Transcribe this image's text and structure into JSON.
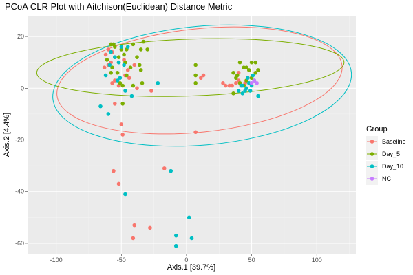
{
  "chart_data": {
    "type": "scatter",
    "title": "PCoA CLR Plot with Aitchison(Euclidean) Distance Metric",
    "xlabel": "Axis.1   [39.7%]",
    "ylabel": "Axis.2   [4.4%]",
    "xlim": [
      -122,
      130
    ],
    "ylim": [
      -64,
      28
    ],
    "x_ticks": [
      -100,
      -50,
      0,
      50,
      100
    ],
    "y_ticks": [
      20,
      0,
      -20,
      -40,
      -60
    ],
    "grid": true,
    "legend": {
      "title": "Group",
      "placement": "right"
    },
    "series": [
      {
        "name": "Baseline",
        "color": "#F8766D",
        "points": [
          [
            -60,
            15
          ],
          [
            -62,
            13
          ],
          [
            -57,
            14
          ],
          [
            -55,
            12
          ],
          [
            -58,
            10
          ],
          [
            -63,
            8
          ],
          [
            -52,
            10
          ],
          [
            -48,
            11
          ],
          [
            -45,
            7
          ],
          [
            -40,
            9
          ],
          [
            -57,
            2
          ],
          [
            -52,
            1
          ],
          [
            -47,
            5
          ],
          [
            -55,
            -6
          ],
          [
            -50,
            -14
          ],
          [
            -38,
            0
          ],
          [
            -27,
            -1
          ],
          [
            -55,
            3
          ],
          [
            -60,
            9
          ],
          [
            -44,
            4
          ],
          [
            -56,
            -32
          ],
          [
            -52,
            -37
          ],
          [
            -17,
            -31
          ],
          [
            7,
            -17
          ],
          [
            -40,
            -53
          ],
          [
            -28,
            -54
          ],
          [
            -41,
            -58
          ],
          [
            -49,
            -18
          ],
          [
            38,
            2
          ],
          [
            42,
            1
          ],
          [
            35,
            1
          ],
          [
            30,
            1
          ],
          [
            45,
            2
          ],
          [
            47,
            4
          ],
          [
            40,
            6
          ],
          [
            11,
            4
          ],
          [
            13,
            5
          ],
          [
            40,
            3
          ],
          [
            33,
            1
          ],
          [
            28,
            2
          ]
        ]
      },
      {
        "name": "Day_5",
        "color": "#7CAE00",
        "points": [
          [
            -58,
            17
          ],
          [
            -55,
            16
          ],
          [
            -50,
            15
          ],
          [
            -46,
            15
          ],
          [
            -48,
            13
          ],
          [
            -52,
            12
          ],
          [
            -47,
            10
          ],
          [
            -43,
            8
          ],
          [
            -38,
            12
          ],
          [
            -35,
            15
          ],
          [
            -33,
            18
          ],
          [
            -30,
            15
          ],
          [
            -41,
            17
          ],
          [
            -57,
            8
          ],
          [
            -53,
            6
          ],
          [
            -36,
            9
          ],
          [
            -35,
            7
          ],
          [
            -56,
            17
          ],
          [
            -61,
            11
          ],
          [
            -46,
            5
          ],
          [
            -51,
            2
          ],
          [
            -49,
            1
          ],
          [
            -41,
            1
          ],
          [
            -49,
            -6
          ],
          [
            -34,
            2
          ],
          [
            -58,
            6
          ],
          [
            7,
            9
          ],
          [
            7,
            5
          ],
          [
            7,
            2
          ],
          [
            41,
            10
          ],
          [
            44,
            8
          ],
          [
            46,
            8
          ],
          [
            50,
            10
          ],
          [
            53,
            10
          ],
          [
            55,
            7
          ],
          [
            48,
            7
          ],
          [
            36,
            6
          ],
          [
            38,
            4
          ],
          [
            46,
            3
          ],
          [
            50,
            4
          ],
          [
            41,
            2
          ],
          [
            44,
            1
          ],
          [
            36,
            -2
          ],
          [
            53,
            6
          ],
          [
            39,
            5
          ]
        ]
      },
      {
        "name": "Day_10",
        "color": "#00BFC4",
        "points": [
          [
            -50,
            16
          ],
          [
            -45,
            16
          ],
          [
            -58,
            14
          ],
          [
            -55,
            12
          ],
          [
            -59,
            9
          ],
          [
            -52,
            10
          ],
          [
            -48,
            9
          ],
          [
            -62,
            5
          ],
          [
            -66,
            -7
          ],
          [
            -60,
            -10
          ],
          [
            -51,
            4
          ],
          [
            -53,
            3
          ],
          [
            -47,
            -1
          ],
          [
            -42,
            -3
          ],
          [
            -22,
            2
          ],
          [
            -12,
            -32
          ],
          [
            -47,
            -41
          ],
          [
            -8,
            -57
          ],
          [
            -8,
            -61
          ],
          [
            2,
            -50
          ],
          [
            4,
            -58
          ],
          [
            43,
            1
          ],
          [
            46,
            0
          ],
          [
            48,
            2
          ],
          [
            50,
            1
          ],
          [
            52,
            3
          ],
          [
            43,
            -2
          ],
          [
            45,
            -1
          ],
          [
            49,
            -1
          ],
          [
            55,
            -3
          ],
          [
            40,
            -1
          ],
          [
            47,
            4
          ],
          [
            42,
            1
          ],
          [
            51,
            5
          ]
        ]
      },
      {
        "name": "NC",
        "color": "#C77CFF",
        "points": [
          [
            52,
            3
          ],
          [
            54,
            2
          ],
          [
            50,
            2
          ]
        ]
      }
    ],
    "ellipses": [
      {
        "group": "Baseline",
        "color": "#F8766D",
        "cx": 10,
        "cy": 3,
        "rx": 110,
        "ry": 20,
        "angle_deg": -6
      },
      {
        "group": "Day_5",
        "color": "#7CAE00",
        "cx": 3,
        "cy": 8,
        "rx": 118,
        "ry": 11,
        "angle_deg": -2
      },
      {
        "group": "Day_10",
        "color": "#00BFC4",
        "cx": 12,
        "cy": 1,
        "rx": 115,
        "ry": 23,
        "angle_deg": -5
      }
    ]
  }
}
